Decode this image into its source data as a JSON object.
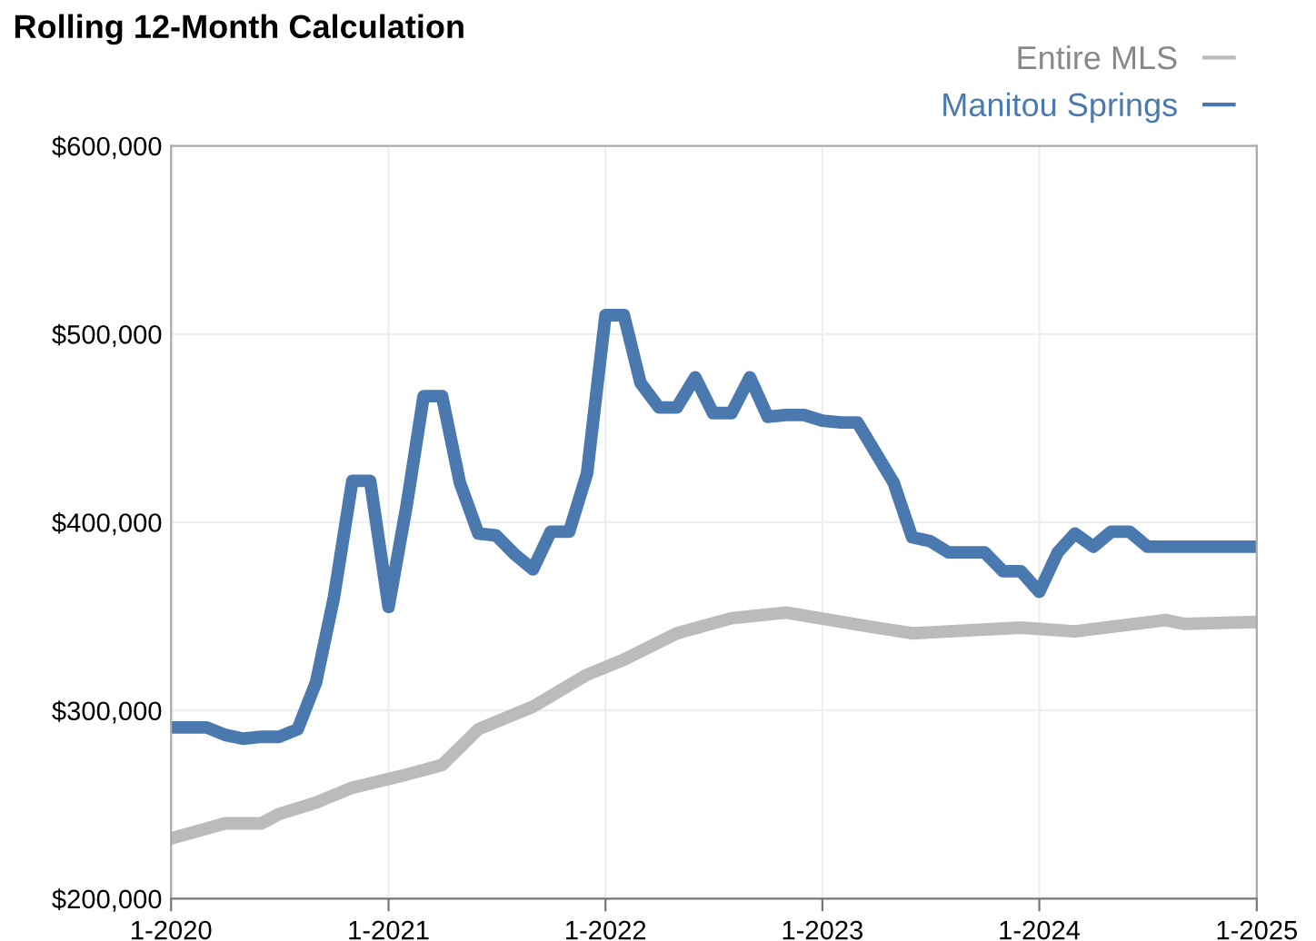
{
  "chart_data": {
    "type": "line",
    "title": "Rolling 12-Month Calculation",
    "xlim": [
      "2020-01",
      "2025-01"
    ],
    "xticks": [
      {
        "value": "2020-01",
        "label": "1-2020"
      },
      {
        "value": "2021-01",
        "label": "1-2021"
      },
      {
        "value": "2022-01",
        "label": "1-2022"
      },
      {
        "value": "2023-01",
        "label": "1-2023"
      },
      {
        "value": "2024-01",
        "label": "1-2024"
      },
      {
        "value": "2025-01",
        "label": "1-2025"
      }
    ],
    "ylim": [
      200000,
      600000
    ],
    "yticks": [
      {
        "value": 200000,
        "label": "$200,000"
      },
      {
        "value": 300000,
        "label": "$300,000"
      },
      {
        "value": 400000,
        "label": "$400,000"
      },
      {
        "value": 500000,
        "label": "$500,000"
      },
      {
        "value": 600000,
        "label": "$600,000"
      }
    ],
    "grid": true,
    "legend": "top right",
    "marker": "none",
    "line_style": "solid",
    "series": [
      {
        "name": "Entire MLS",
        "color": "#b9bcb8",
        "x": [
          "2020-01",
          "2020-04",
          "2020-06",
          "2020-07",
          "2020-09",
          "2020-11",
          "2021-02",
          "2021-04",
          "2021-06",
          "2021-09",
          "2021-12",
          "2022-02",
          "2022-05",
          "2022-08",
          "2022-11",
          "2023-04",
          "2023-06",
          "2023-12",
          "2024-03",
          "2024-08",
          "2024-09",
          "2025-01"
        ],
        "values": [
          232000,
          240000,
          240000,
          245000,
          251000,
          259000,
          266000,
          271000,
          290000,
          302000,
          319000,
          327000,
          341000,
          349000,
          352000,
          344000,
          341000,
          344000,
          342000,
          348000,
          346000,
          347000
        ]
      },
      {
        "name": "Manitou Springs",
        "color": "#4a79b0",
        "x": [
          "2020-01",
          "2020-03",
          "2020-04",
          "2020-05",
          "2020-06",
          "2020-07",
          "2020-08",
          "2020-09",
          "2020-10",
          "2020-11",
          "2020-12",
          "2021-01",
          "2021-02",
          "2021-03",
          "2021-04",
          "2021-05",
          "2021-06",
          "2021-07",
          "2021-08",
          "2021-09",
          "2021-10",
          "2021-11",
          "2021-12",
          "2022-01",
          "2022-02",
          "2022-03",
          "2022-04",
          "2022-05",
          "2022-06",
          "2022-07",
          "2022-08",
          "2022-09",
          "2022-10",
          "2022-11",
          "2022-12",
          "2023-01",
          "2023-02",
          "2023-03",
          "2023-05",
          "2023-06",
          "2023-07",
          "2023-08",
          "2023-09",
          "2023-10",
          "2023-11",
          "2023-12",
          "2024-01",
          "2024-02",
          "2024-03",
          "2024-04",
          "2024-05",
          "2024-06",
          "2024-07",
          "2025-01"
        ],
        "values": [
          291000,
          291000,
          287000,
          285000,
          286000,
          286000,
          290000,
          315000,
          360000,
          422000,
          422000,
          355000,
          410000,
          467000,
          467000,
          421000,
          394000,
          393000,
          383000,
          375000,
          395000,
          395000,
          426000,
          510000,
          510000,
          474000,
          461000,
          461000,
          477000,
          458000,
          458000,
          477000,
          456000,
          457000,
          457000,
          454000,
          453000,
          453000,
          421000,
          392000,
          390000,
          384000,
          384000,
          384000,
          374000,
          374000,
          363000,
          384000,
          394000,
          387000,
          395000,
          395000,
          387000,
          387000
        ]
      }
    ]
  }
}
